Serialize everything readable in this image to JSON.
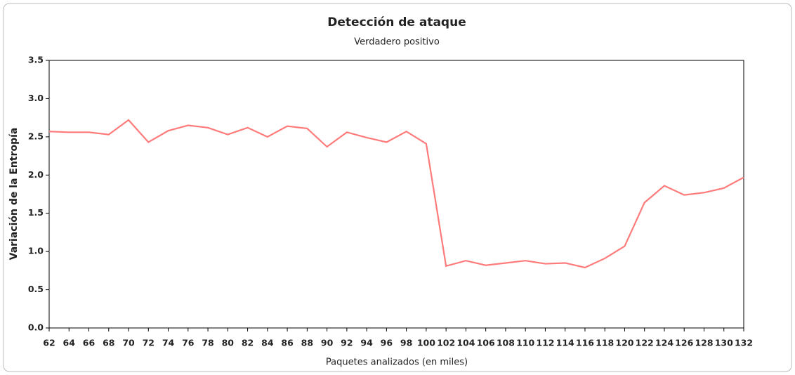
{
  "chart_data": {
    "type": "line",
    "title": "Detección de ataque",
    "subtitle": "Verdadero positivo",
    "x_label": "Paquetes analizados (en miles)",
    "y_label": "Variación de la Entropía",
    "x": [
      62,
      64,
      66,
      68,
      70,
      72,
      74,
      76,
      78,
      80,
      82,
      84,
      86,
      88,
      90,
      92,
      94,
      96,
      98,
      100,
      102,
      104,
      106,
      108,
      110,
      112,
      114,
      116,
      118,
      120,
      122,
      124,
      126,
      128,
      130,
      132
    ],
    "series": [
      {
        "name": "Verdadero positivo",
        "color": "#ff7b7b",
        "values": [
          2.57,
          2.56,
          2.56,
          2.53,
          2.72,
          2.43,
          2.58,
          2.65,
          2.62,
          2.53,
          2.62,
          2.5,
          2.64,
          2.61,
          2.37,
          2.56,
          2.49,
          2.43,
          2.57,
          2.41,
          0.81,
          0.88,
          0.82,
          0.85,
          0.88,
          0.84,
          0.85,
          0.79,
          0.91,
          1.07,
          1.64,
          1.86,
          1.74,
          1.77,
          1.83,
          1.97
        ]
      }
    ],
    "xlim": [
      62,
      132
    ],
    "xticks": [
      62,
      64,
      66,
      68,
      70,
      72,
      74,
      76,
      78,
      80,
      82,
      84,
      86,
      88,
      90,
      92,
      94,
      96,
      98,
      100,
      102,
      104,
      106,
      108,
      110,
      112,
      114,
      116,
      118,
      120,
      122,
      124,
      126,
      128,
      130,
      132
    ],
    "ylim": [
      0,
      3.5
    ],
    "yticks": [
      {
        "value": 0,
        "label": "0.0"
      },
      0.5,
      {
        "value": 1,
        "label": "1.0"
      },
      1.5,
      {
        "value": 2,
        "label": "2.0"
      },
      2.5,
      {
        "value": 3,
        "label": "3.0"
      },
      3.5
    ],
    "grid": false
  }
}
